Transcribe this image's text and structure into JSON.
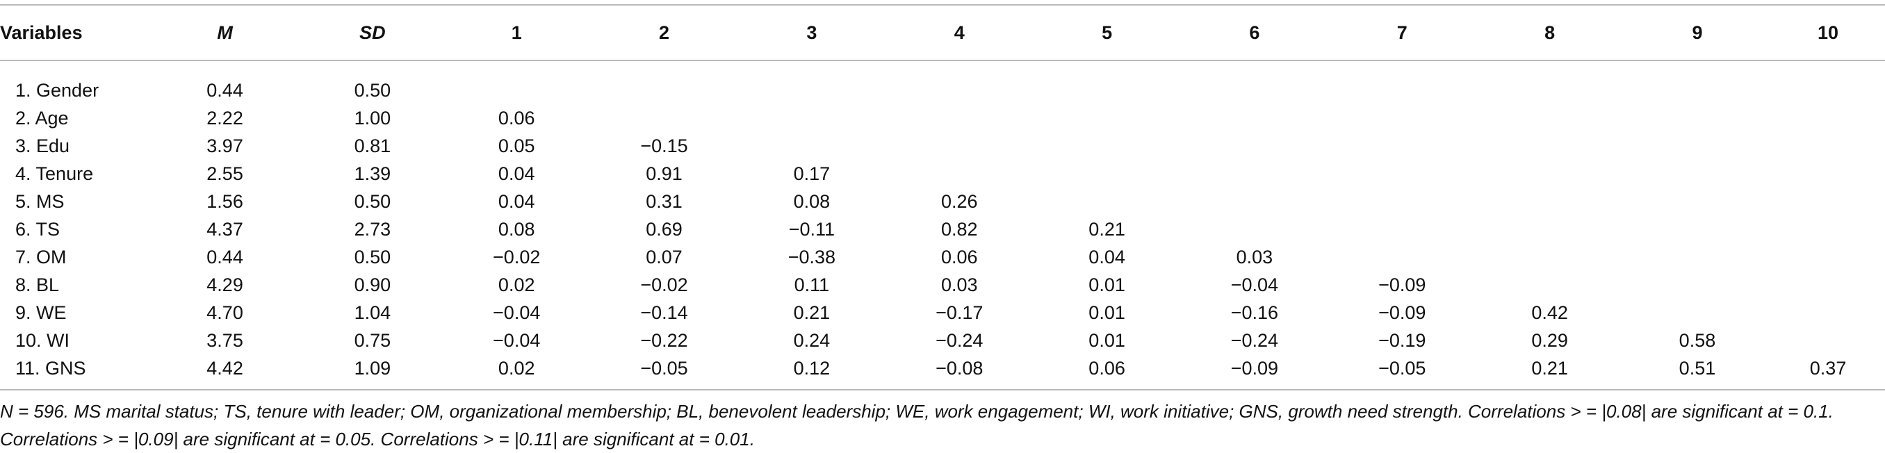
{
  "table": {
    "headers": [
      "Variables",
      "M",
      "SD",
      "1",
      "2",
      "3",
      "4",
      "5",
      "6",
      "7",
      "8",
      "9",
      "10"
    ],
    "rows": [
      [
        "1. Gender",
        "0.44",
        "0.50",
        "",
        "",
        "",
        "",
        "",
        "",
        "",
        "",
        "",
        ""
      ],
      [
        "2. Age",
        "2.22",
        "1.00",
        "0.06",
        "",
        "",
        "",
        "",
        "",
        "",
        "",
        "",
        ""
      ],
      [
        "3. Edu",
        "3.97",
        "0.81",
        "0.05",
        "−0.15",
        "",
        "",
        "",
        "",
        "",
        "",
        "",
        ""
      ],
      [
        "4. Tenure",
        "2.55",
        "1.39",
        "0.04",
        "0.91",
        "0.17",
        "",
        "",
        "",
        "",
        "",
        "",
        ""
      ],
      [
        "5. MS",
        "1.56",
        "0.50",
        "0.04",
        "0.31",
        "0.08",
        "0.26",
        "",
        "",
        "",
        "",
        "",
        ""
      ],
      [
        "6. TS",
        "4.37",
        "2.73",
        "0.08",
        "0.69",
        "−0.11",
        "0.82",
        "0.21",
        "",
        "",
        "",
        "",
        ""
      ],
      [
        "7. OM",
        "0.44",
        "0.50",
        "−0.02",
        "0.07",
        "−0.38",
        "0.06",
        "0.04",
        "0.03",
        "",
        "",
        "",
        ""
      ],
      [
        "8. BL",
        "4.29",
        "0.90",
        "0.02",
        "−0.02",
        "0.11",
        "0.03",
        "0.01",
        "−0.04",
        "−0.09",
        "",
        "",
        ""
      ],
      [
        "9. WE",
        "4.70",
        "1.04",
        "−0.04",
        "−0.14",
        "0.21",
        "−0.17",
        "0.01",
        "−0.16",
        "−0.09",
        "0.42",
        "",
        ""
      ],
      [
        "10. WI",
        "3.75",
        "0.75",
        "−0.04",
        "−0.22",
        "0.24",
        "−0.24",
        "0.01",
        "−0.24",
        "−0.19",
        "0.29",
        "0.58",
        ""
      ],
      [
        "11. GNS",
        "4.42",
        "1.09",
        "0.02",
        "−0.05",
        "0.12",
        "−0.08",
        "0.06",
        "−0.09",
        "−0.05",
        "0.21",
        "0.51",
        "0.37"
      ]
    ]
  },
  "footnote": {
    "line1": "N = 596. MS marital status; TS, tenure with leader; OM, organizational membership; BL, benevolent leadership; WE, work engagement; WI, work initiative; GNS, growth need strength. Correlations > = |0.08| are significant at = 0.1.",
    "line2": "Correlations > = |0.09| are significant at = 0.05. Correlations > = |0.11| are significant at = 0.01."
  }
}
